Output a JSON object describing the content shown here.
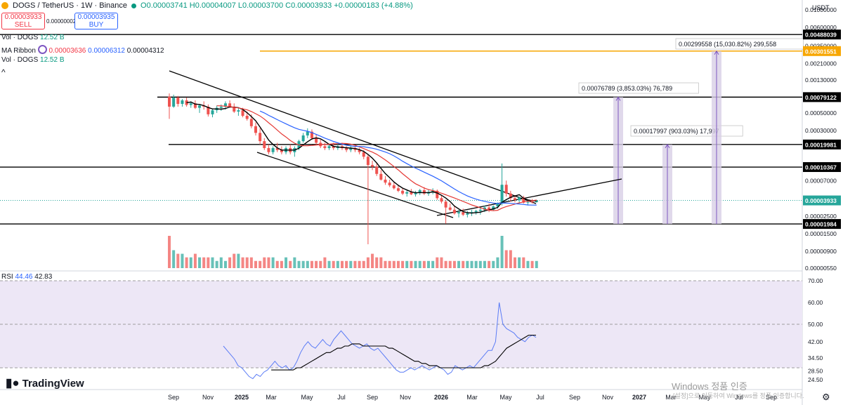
{
  "header": {
    "symbol": "DOGS / TetherUS · 1W · Binance",
    "ohlc": "O0.00003741  H0.00004007  L0.00003700  C0.00003933  +0.00000183 (+4.88%)"
  },
  "trade": {
    "sell_price": "0.00003933",
    "sell_label": "SELL",
    "spread": "0.00000002",
    "buy_price": "0.00003935",
    "buy_label": "BUY"
  },
  "indicators": {
    "vol1_label": "Vol · DOGS",
    "vol1_value": "12.52 B",
    "ma_label": "MA Ribbon",
    "ma_v1": "0.00003636",
    "ma_v2": "0.00006312",
    "ma_v3": "0.00004312",
    "vol2_label": "Vol · DOGS",
    "vol2_value": "12.52 B",
    "rsi_label": "RSI",
    "rsi_v1": "44.46",
    "rsi_v2": "42.83"
  },
  "brand": {
    "name": "TradingView"
  },
  "watermark": {
    "line1": "Windows 정품 인증",
    "line2": "[설정]으로 이동하여 Windows를 정품 인증합니다."
  },
  "currency_label": "USDT",
  "colors": {
    "up": "#26a69a",
    "down": "#ef5350",
    "ma_fast": "#000000",
    "ma_mid": "#e53935",
    "ma_slow": "#2962ff",
    "rsi": "#5b7cf6",
    "rsi_ma": "#000000",
    "rsi_bg": "#ede7f6",
    "orange_line": "#f7a600",
    "target_bar": "#d8d0e6"
  },
  "chart_data": {
    "type": "candlestick",
    "price_scale": "log",
    "ylim": [
      5.5e-06,
      0.01
    ],
    "x_axis_labels": [
      "Sep",
      "Nov",
      "2025",
      "Mar",
      "May",
      "Jul",
      "Sep",
      "Nov",
      "2026",
      "Mar",
      "May",
      "Jul",
      "Sep",
      "Nov",
      "2027",
      "Mar",
      "May",
      "Jul",
      "Sep"
    ],
    "y_axis_labels": [
      "0.01000000",
      "0.00600000",
      "0.00350000",
      "0.00210000",
      "0.00130000",
      "0.00050000",
      "0.00030000",
      "0.00007000",
      "0.00002500",
      "0.00001500",
      "0.00000900",
      "0.00000550"
    ],
    "horizontal_levels": [
      {
        "label": "0.00488039",
        "price": 0.00488039,
        "color": "#000000"
      },
      {
        "label": "0.00301551",
        "price": 0.00301551,
        "color": "#f7a600"
      },
      {
        "label": "0.00079122",
        "price": 0.00079122,
        "color": "#000000"
      },
      {
        "label": "0.00019981",
        "price": 0.00019981,
        "color": "#000000"
      },
      {
        "label": "0.00010367",
        "price": 0.00010367,
        "color": "#000000"
      },
      {
        "label": "0.00001984",
        "price": 1.984e-05,
        "color": "#000000"
      }
    ],
    "current_price": {
      "label": "0.00003933",
      "price": 3.933e-05
    },
    "targets": [
      {
        "label": "0.00017997 (903.03%) 17,997",
        "price": 0.00019981
      },
      {
        "label": "0.00076789 (3,853.03%) 76,789",
        "price": 0.00079122
      },
      {
        "label": "0.00299558 (15,030.82%) 299,558",
        "price": 0.00301551
      }
    ],
    "candles": [
      [
        0.0008,
        0.00088,
        0.00042,
        0.0006
      ],
      [
        0.0006,
        0.00085,
        0.00058,
        0.00078
      ],
      [
        0.00078,
        0.00082,
        0.0006,
        0.00065
      ],
      [
        0.00065,
        0.00075,
        0.0006,
        0.00072
      ],
      [
        0.00072,
        0.00078,
        0.0006,
        0.00063
      ],
      [
        0.00063,
        0.0007,
        0.00058,
        0.00066
      ],
      [
        0.00066,
        0.00072,
        0.00056,
        0.00058
      ],
      [
        0.00058,
        0.00065,
        0.0005,
        0.00062
      ],
      [
        0.00062,
        0.0007,
        0.00055,
        0.0006
      ],
      [
        0.0006,
        0.00064,
        0.00045,
        0.00048
      ],
      [
        0.00048,
        0.00056,
        0.00044,
        0.00054
      ],
      [
        0.00054,
        0.00062,
        0.0005,
        0.00058
      ],
      [
        0.00058,
        0.00064,
        0.00053,
        0.0006
      ],
      [
        0.0006,
        0.0007,
        0.00055,
        0.00066
      ],
      [
        0.00066,
        0.00072,
        0.00058,
        0.0006
      ],
      [
        0.0006,
        0.00066,
        0.0005,
        0.00052
      ],
      [
        0.00052,
        0.00058,
        0.00046,
        0.00054
      ],
      [
        0.00054,
        0.00058,
        0.00044,
        0.00046
      ],
      [
        0.00046,
        0.00052,
        0.0004,
        0.00042
      ],
      [
        0.00042,
        0.00048,
        0.00032,
        0.00034
      ],
      [
        0.00034,
        0.00038,
        0.00026,
        0.00028
      ],
      [
        0.00028,
        0.00032,
        0.0002,
        0.00022
      ],
      [
        0.00022,
        0.00024,
        0.00017,
        0.00018
      ],
      [
        0.00018,
        0.0002,
        0.00015,
        0.00016
      ],
      [
        0.00016,
        0.00019,
        0.00015,
        0.00018
      ],
      [
        0.00018,
        0.00021,
        0.00016,
        0.00017
      ],
      [
        0.00017,
        0.00019,
        0.00015,
        0.00016
      ],
      [
        0.00016,
        0.00019,
        0.00015,
        0.00018
      ],
      [
        0.00018,
        0.0002,
        0.00015,
        0.00016
      ],
      [
        0.00016,
        0.00019,
        0.00014,
        0.00018
      ],
      [
        0.00018,
        0.00023,
        0.00017,
        0.00022
      ],
      [
        0.00022,
        0.00028,
        0.00021,
        0.00026
      ],
      [
        0.00026,
        0.00032,
        0.00024,
        0.00029
      ],
      [
        0.00029,
        0.00031,
        0.00023,
        0.00024
      ],
      [
        0.00024,
        0.00027,
        0.0002,
        0.00021
      ],
      [
        0.00021,
        0.00023,
        0.00018,
        0.00019
      ],
      [
        0.00019,
        0.00021,
        0.00017,
        0.00018
      ],
      [
        0.00018,
        0.0002,
        0.00017,
        0.00019
      ],
      [
        0.00019,
        0.00021,
        0.00017,
        0.00018
      ],
      [
        0.00018,
        0.0002,
        0.00017,
        0.00019
      ],
      [
        0.00019,
        0.00021,
        0.00017,
        0.00018
      ],
      [
        0.00018,
        0.00019,
        0.00016,
        0.00017
      ],
      [
        0.00017,
        0.00019,
        0.00016,
        0.00018
      ],
      [
        0.00018,
        0.00019,
        0.00016,
        0.00017
      ],
      [
        0.00017,
        0.00018,
        0.00015,
        0.00016
      ],
      [
        0.00016,
        0.00017,
        0.00013,
        0.00014
      ],
      [
        0.00014,
        0.00015,
        1.1e-05,
        0.00011
      ],
      [
        0.00011,
        0.000125,
        9.5e-05,
        0.000105
      ],
      [
        0.000105,
        0.000115,
        8e-05,
        8.5e-05
      ],
      [
        8.5e-05,
        9.5e-05,
        7e-05,
        7.2e-05
      ],
      [
        7.2e-05,
        8e-05,
        6.2e-05,
        6.6e-05
      ],
      [
        6.6e-05,
        7.2e-05,
        5.8e-05,
        6.1e-05
      ],
      [
        6.1e-05,
        6.6e-05,
        5.4e-05,
        5.6e-05
      ],
      [
        5.6e-05,
        6.1e-05,
        5e-05,
        5.2e-05
      ],
      [
        5.2e-05,
        5.6e-05,
        4.6e-05,
        4.8e-05
      ],
      [
        4.8e-05,
        5.3e-05,
        4.4e-05,
        5e-05
      ],
      [
        5e-05,
        5.5e-05,
        4.6e-05,
        4.7e-05
      ],
      [
        4.7e-05,
        5.2e-05,
        4.4e-05,
        4.9e-05
      ],
      [
        4.9e-05,
        5.5e-05,
        4.6e-05,
        5.3e-05
      ],
      [
        5.3e-05,
        5.8e-05,
        4.6e-05,
        4.8e-05
      ],
      [
        4.8e-05,
        5.4e-05,
        4.5e-05,
        5e-05
      ],
      [
        5e-05,
        5.6e-05,
        4.7e-05,
        5.2e-05
      ],
      [
        5.2e-05,
        5.4e-05,
        4e-05,
        4.2e-05
      ],
      [
        4.2e-05,
        4.6e-05,
        3.6e-05,
        3.8e-05
      ],
      [
        3.8e-05,
        4e-05,
        2e-05,
        3.2e-05
      ],
      [
        3.2e-05,
        3.6e-05,
        2.9e-05,
        3e-05
      ],
      [
        3e-05,
        3.3e-05,
        2.6e-05,
        2.7e-05
      ],
      [
        2.7e-05,
        3e-05,
        2.4e-05,
        2.8e-05
      ],
      [
        2.8e-05,
        3.1e-05,
        2.5e-05,
        2.6e-05
      ],
      [
        2.6e-05,
        2.9e-05,
        2.4e-05,
        2.7e-05
      ],
      [
        2.7e-05,
        3e-05,
        2.5e-05,
        2.8e-05
      ],
      [
        2.8e-05,
        3e-05,
        2.6e-05,
        2.9e-05
      ],
      [
        2.9e-05,
        3.2e-05,
        2.6e-05,
        3e-05
      ],
      [
        3e-05,
        3.4e-05,
        2.8e-05,
        3.2e-05
      ],
      [
        3.2e-05,
        3.6e-05,
        2.8e-05,
        3e-05
      ],
      [
        3e-05,
        3.4e-05,
        2.9e-05,
        3.3e-05
      ],
      [
        3.3e-05,
        3.7e-05,
        3.1e-05,
        3.6e-05
      ],
      [
        3.6e-05,
        0.000115,
        3.4e-05,
        6.2e-05
      ],
      [
        6.2e-05,
        7e-05,
        4.4e-05,
        4.8e-05
      ],
      [
        4.8e-05,
        5.2e-05,
        3.8e-05,
        4.2e-05
      ],
      [
        4.2e-05,
        4.6e-05,
        3.7e-05,
        4e-05
      ],
      [
        4e-05,
        4.4e-05,
        3.6e-05,
        4.3e-05
      ],
      [
        4.3e-05,
        4.5e-05,
        3.6e-05,
        3.7e-05
      ],
      [
        3.7e-05,
        4e-05,
        3.4e-05,
        3.8e-05
      ],
      [
        3.8e-05,
        4.1e-05,
        3.6e-05,
        3.74e-05
      ],
      [
        3.741e-05,
        4.007e-05,
        3.7e-05,
        3.933e-05
      ]
    ],
    "volume": [
      9,
      5,
      4,
      4,
      3,
      3,
      4,
      3,
      3,
      3,
      3,
      2,
      3,
      2,
      3,
      4,
      4,
      3,
      3,
      3,
      2,
      2,
      3,
      3,
      3,
      2,
      2,
      3,
      2,
      3,
      2,
      2,
      2,
      2,
      2,
      2,
      3,
      2,
      2,
      2,
      2,
      2,
      2,
      2,
      2,
      2,
      3,
      4,
      3,
      3,
      2,
      2,
      2,
      2,
      2,
      2,
      2,
      2,
      2,
      2,
      2,
      2,
      3,
      3,
      2,
      2,
      2,
      2,
      2,
      2,
      2,
      2,
      2,
      2,
      2,
      2,
      3,
      9,
      5,
      5,
      3,
      3,
      3,
      2,
      2,
      2
    ],
    "rsi": [
      40,
      38,
      36,
      34,
      31,
      30,
      28,
      26,
      25,
      27,
      26,
      28,
      29,
      31,
      33,
      31,
      30,
      31,
      29,
      30,
      33,
      37,
      40,
      42,
      40,
      39,
      41,
      43,
      41,
      40,
      43,
      45,
      47,
      45,
      43,
      41,
      40,
      39,
      40,
      41,
      39,
      38,
      39,
      37,
      35,
      33,
      31,
      29,
      28,
      28,
      29,
      30,
      29,
      30,
      31,
      30,
      29,
      30,
      31,
      30,
      29,
      27,
      28,
      31,
      30,
      29,
      30,
      31,
      30,
      32,
      34,
      36,
      38,
      38,
      42,
      60,
      50,
      48,
      47,
      46,
      44,
      43,
      42,
      44,
      45,
      44
    ],
    "rsi_ma": [
      null,
      null,
      null,
      null,
      null,
      null,
      null,
      null,
      null,
      null,
      null,
      null,
      null,
      29,
      29,
      29,
      29,
      29,
      29,
      29,
      30,
      30,
      31,
      32,
      33,
      34,
      35,
      36,
      37,
      37,
      38,
      39,
      39,
      40,
      40,
      41,
      41,
      41,
      40,
      40,
      40,
      40,
      40,
      40,
      40,
      39,
      39,
      38,
      37,
      36,
      35,
      34,
      33,
      33,
      32,
      32,
      31,
      31,
      31,
      30,
      30,
      30,
      30,
      30,
      30,
      30,
      30,
      30,
      30,
      30,
      30,
      31,
      31,
      32,
      33,
      35,
      37,
      39,
      40,
      41,
      42,
      43,
      44,
      45,
      45,
      45
    ],
    "rsi_scale": [
      24.5,
      70
    ],
    "rsi_ticks": [
      "70.00",
      "60.00",
      "50.00",
      "42.00",
      "34.50",
      "28.50",
      "24.50"
    ],
    "rsi_bands": {
      "upper": 70,
      "middle": 50,
      "lower": 30
    }
  }
}
